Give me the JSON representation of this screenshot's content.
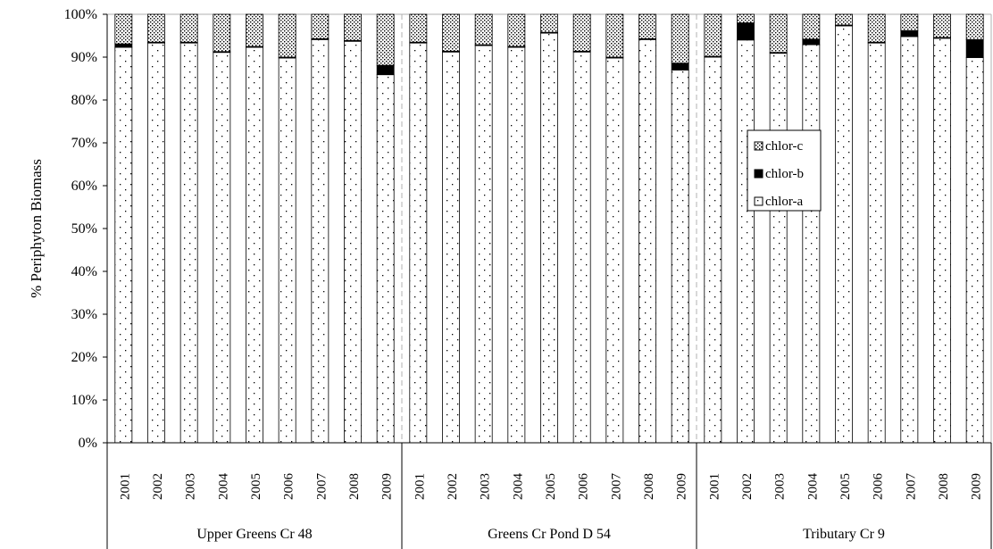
{
  "chart_data": {
    "type": "bar",
    "stacked": true,
    "ylabel": "% Periphyton Biomass",
    "ylim": [
      0,
      100
    ],
    "yticks": [
      "0%",
      "10%",
      "20%",
      "30%",
      "40%",
      "50%",
      "60%",
      "70%",
      "80%",
      "90%",
      "100%"
    ],
    "grid": false,
    "legend_position": "right",
    "groups": [
      {
        "name": "Upper Greens Cr 48",
        "categories": [
          "2001",
          "2002",
          "2003",
          "2004",
          "2005",
          "2006",
          "2007",
          "2008",
          "2009"
        ],
        "series": [
          {
            "name": "chlor-a",
            "values": [
              92.3,
              93.3,
              93.3,
              91.1,
              92.3,
              89.8,
              94.1,
              93.7,
              85.9
            ]
          },
          {
            "name": "chlor-b",
            "values": [
              0.8,
              0.2,
              0.2,
              0.2,
              0.2,
              0.2,
              0.2,
              0.2,
              2.2
            ]
          },
          {
            "name": "chlor-c",
            "values": [
              6.9,
              6.5,
              6.5,
              8.7,
              7.5,
              10.0,
              5.7,
              6.1,
              11.9
            ]
          }
        ]
      },
      {
        "name": "Greens Cr Pond D 54",
        "categories": [
          "2001",
          "2002",
          "2003",
          "2004",
          "2005",
          "2006",
          "2007",
          "2008",
          "2009"
        ],
        "series": [
          {
            "name": "chlor-a",
            "values": [
              93.3,
              91.2,
              92.7,
              92.3,
              95.6,
              91.2,
              89.8,
              94.1,
              87.0
            ]
          },
          {
            "name": "chlor-b",
            "values": [
              0.2,
              0.2,
              0.2,
              0.2,
              0.2,
              0.2,
              0.2,
              0.2,
              1.6
            ]
          },
          {
            "name": "chlor-c",
            "values": [
              6.5,
              8.6,
              7.1,
              7.5,
              4.2,
              8.6,
              10.0,
              5.7,
              11.4
            ]
          }
        ]
      },
      {
        "name": "Tributary Cr 9",
        "categories": [
          "2001",
          "2002",
          "2003",
          "2004",
          "2005",
          "2006",
          "2007",
          "2008",
          "2009"
        ],
        "series": [
          {
            "name": "chlor-a",
            "values": [
              90.0,
              94.0,
              90.9,
              92.9,
              97.3,
              93.3,
              94.8,
              94.4,
              89.9
            ]
          },
          {
            "name": "chlor-b",
            "values": [
              0.2,
              4.0,
              0.2,
              1.3,
              0.2,
              0.2,
              1.4,
              0.2,
              4.2
            ]
          },
          {
            "name": "chlor-c",
            "values": [
              9.8,
              2.0,
              8.9,
              5.8,
              2.5,
              6.5,
              3.8,
              5.4,
              5.9
            ]
          }
        ]
      }
    ],
    "legend": [
      {
        "name": "chlor-c",
        "pattern": "dense-dots"
      },
      {
        "name": "chlor-b",
        "pattern": "solid-black"
      },
      {
        "name": "chlor-a",
        "pattern": "sparse-dots"
      }
    ]
  }
}
